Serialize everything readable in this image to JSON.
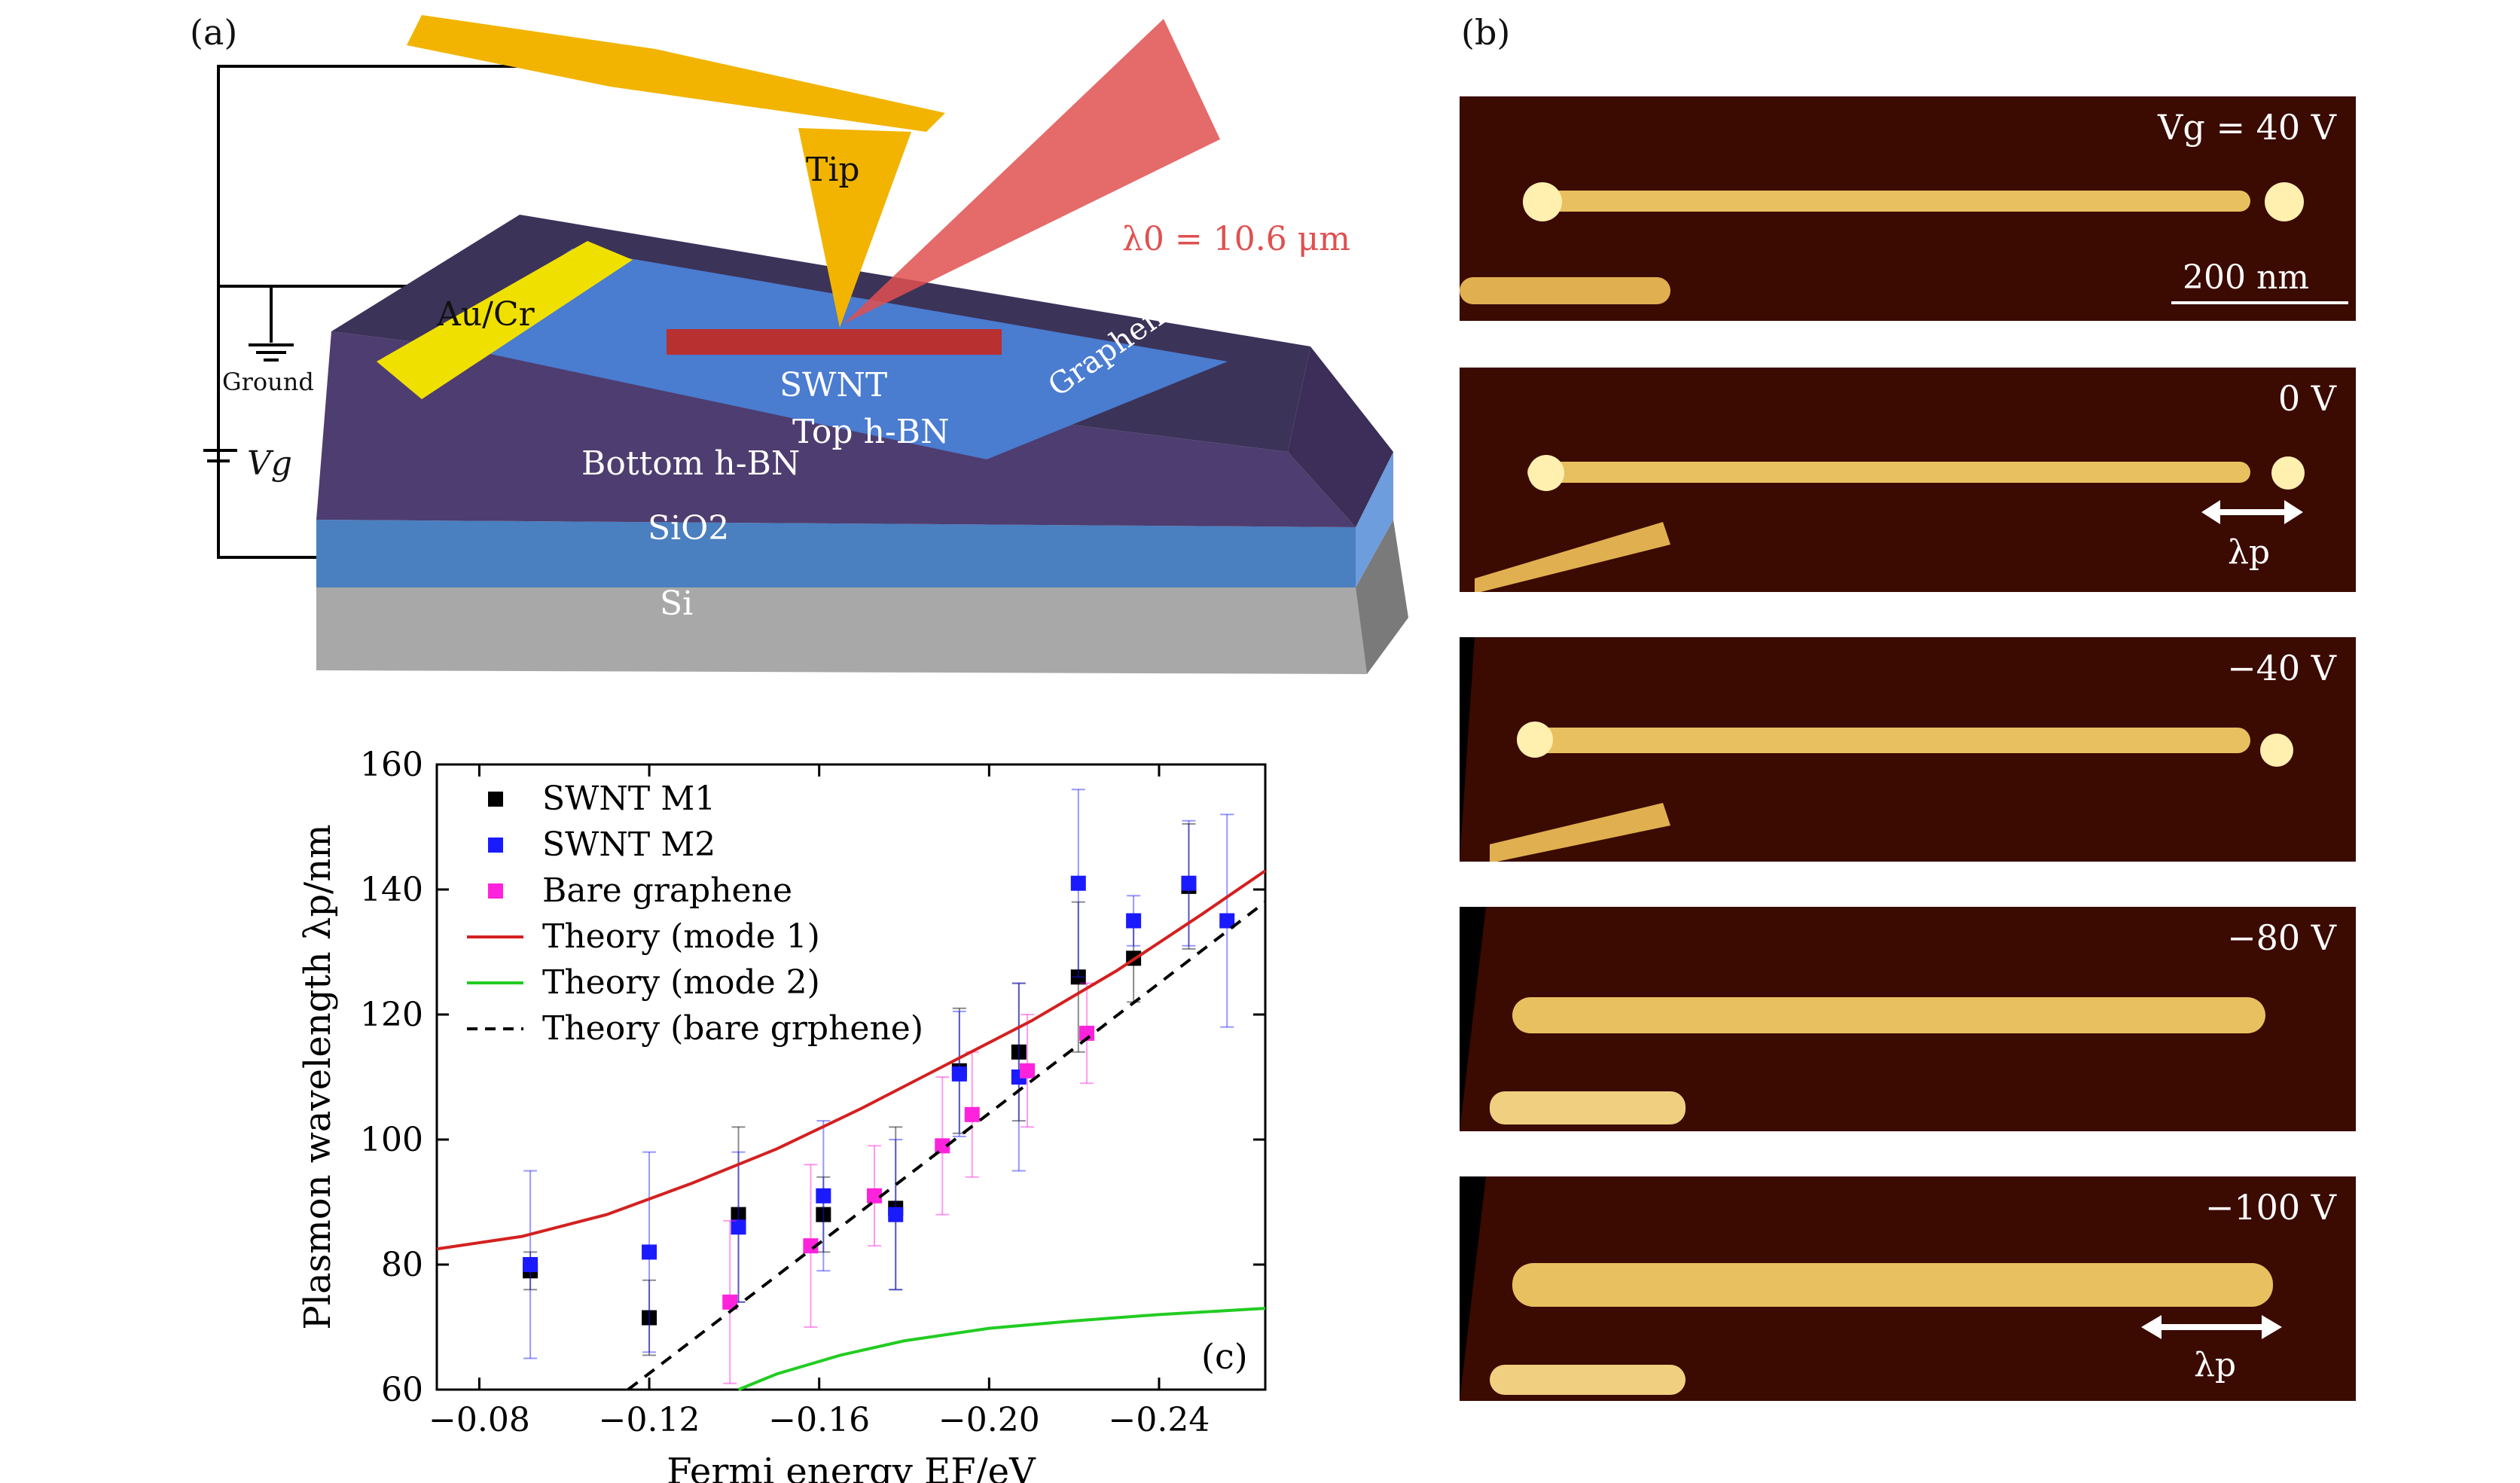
{
  "panels": {
    "a": {
      "letter": "(a)",
      "labels": {
        "tip": "Tip",
        "laser": "λ0 = 10.6 μm",
        "contact": "Au/Cr",
        "ground": "Ground",
        "gate": "Vg",
        "swnt": "SWNT",
        "top_hbn": "Top h-BN",
        "bottom_hbn": "Bottom h-BN",
        "graphene": "Graphene",
        "sio2": "SiO2",
        "si": "Si"
      },
      "colors": {
        "laser": "#e05050",
        "gold": "#f2b400",
        "contact": "#f0e000",
        "hbn": "#4a3a6e",
        "graphene": "#4a78c8",
        "sio2": "#4a7ab8",
        "si": "#9a9a9a"
      }
    },
    "b": {
      "letter": "(b)",
      "images": [
        {
          "label": "Vg = 40 V",
          "scalebar": "200 nm"
        },
        {
          "label": "0 V",
          "arrow": "λp"
        },
        {
          "label": "−40 V"
        },
        {
          "label": "−80 V"
        },
        {
          "label": "−100 V",
          "arrow": "λp"
        }
      ]
    },
    "c": {
      "letter": "(c)"
    }
  },
  "chart_data": {
    "type": "scatter",
    "xlabel": "Fermi energy EF/eV",
    "ylabel": "Plasmon wavelength λp/nm",
    "xlim": [
      -0.07,
      -0.265
    ],
    "ylim": [
      60,
      160
    ],
    "xticks": [
      -0.08,
      -0.12,
      -0.16,
      -0.2,
      -0.24
    ],
    "xtick_labels": [
      "−0.08",
      "−0.12",
      "−0.16",
      "−0.20",
      "−0.24"
    ],
    "yticks": [
      60,
      80,
      100,
      120,
      140,
      160
    ],
    "legend_position": "top-left",
    "series": [
      {
        "name": "SWNT M1",
        "color": "#000000",
        "marker": "square",
        "x": [
          -0.092,
          -0.12,
          -0.141,
          -0.161,
          -0.178,
          -0.193,
          -0.207,
          -0.221,
          -0.234,
          -0.247
        ],
        "y": [
          79,
          71.5,
          88,
          88,
          89,
          111,
          114,
          126,
          129,
          140.5
        ],
        "err": [
          3,
          6,
          14,
          6,
          13,
          10,
          11,
          12,
          7,
          10
        ]
      },
      {
        "name": "SWNT M2",
        "color": "#1a1aff",
        "marker": "square",
        "x": [
          -0.092,
          -0.12,
          -0.141,
          -0.161,
          -0.178,
          -0.193,
          -0.207,
          -0.221,
          -0.234,
          -0.247,
          -0.256
        ],
        "y": [
          80,
          82,
          86,
          91,
          88,
          110.5,
          110,
          141,
          135,
          141,
          135
        ],
        "err": [
          15,
          16,
          12,
          12,
          12,
          10,
          15,
          15,
          4,
          10,
          17
        ]
      },
      {
        "name": "Bare graphene",
        "color": "#ff22dd",
        "marker": "square",
        "x": [
          -0.139,
          -0.158,
          -0.173,
          -0.189,
          -0.196,
          -0.209,
          -0.223
        ],
        "y": [
          74,
          83,
          91,
          99,
          104,
          111,
          117
        ],
        "err": [
          13,
          13,
          8,
          11,
          10,
          9,
          8
        ]
      },
      {
        "name": "Theory (mode 1)",
        "color": "#d42020",
        "line": "solid",
        "x": [
          -0.07,
          -0.09,
          -0.11,
          -0.13,
          -0.15,
          -0.17,
          -0.19,
          -0.21,
          -0.23,
          -0.25,
          -0.265
        ],
        "y": [
          82.5,
          84.5,
          88,
          93,
          98.5,
          105,
          112,
          119,
          127,
          136,
          143
        ]
      },
      {
        "name": "Theory (mode 2)",
        "color": "#22cc22",
        "line": "solid",
        "x": [
          -0.141,
          -0.15,
          -0.165,
          -0.18,
          -0.2,
          -0.22,
          -0.24,
          -0.265
        ],
        "y": [
          60,
          62.5,
          65.5,
          67.8,
          69.8,
          71,
          72,
          73
        ]
      },
      {
        "name": "Theory (bare grphene)",
        "color": "#000000",
        "line": "dashed",
        "x": [
          -0.115,
          -0.265
        ],
        "y": [
          60,
          138
        ]
      }
    ],
    "panel_label": "(c)"
  }
}
